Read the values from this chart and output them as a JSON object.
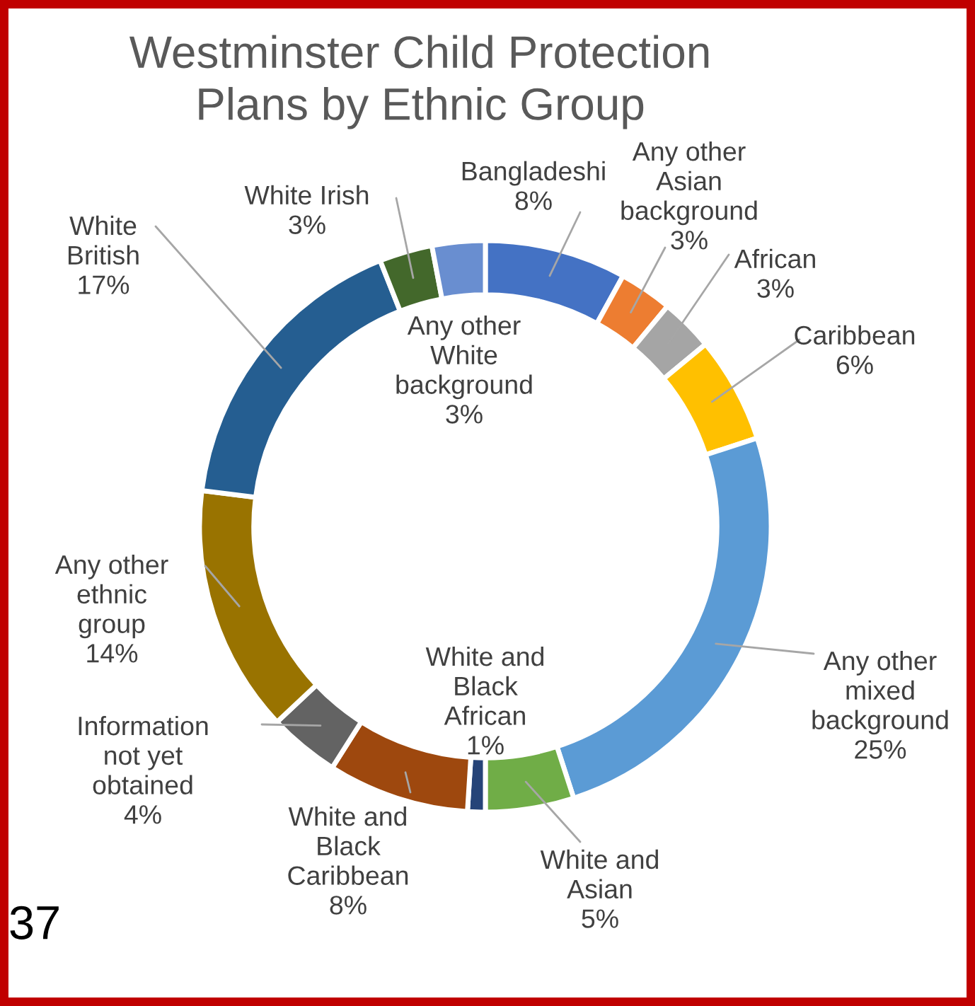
{
  "chart_data": {
    "type": "donut",
    "title": "Westminster Child Protection\nPlans by Ethnic Group",
    "categories": [
      "Bangladeshi",
      "Any other\nAsian\nbackground",
      "African",
      "Caribbean",
      "Any other\nmixed\nbackground",
      "White and\nAsian",
      "White and\nBlack\nAfrican",
      "White and\nBlack\nCaribbean",
      "Information\nnot yet\nobtained",
      "Any other\nethnic\ngroup",
      "White\nBritish",
      "White Irish",
      "Any other\nWhite\nbackground"
    ],
    "values": [
      8,
      3,
      3,
      6,
      25,
      5,
      1,
      8,
      4,
      14,
      17,
      3,
      3
    ],
    "value_labels": [
      "8%",
      "3%",
      "3%",
      "6%",
      "25%",
      "5%",
      "1%",
      "8%",
      "4%",
      "14%",
      "17%",
      "3%",
      "3%"
    ],
    "colors": [
      "#4472c4",
      "#ed7d31",
      "#a5a5a5",
      "#ffc000",
      "#5b9bd5",
      "#70ad47",
      "#264478",
      "#9e480e",
      "#636363",
      "#997300",
      "#255e91",
      "#43682b",
      "#698ed0"
    ],
    "annotations": [
      "37"
    ],
    "legend": false
  }
}
